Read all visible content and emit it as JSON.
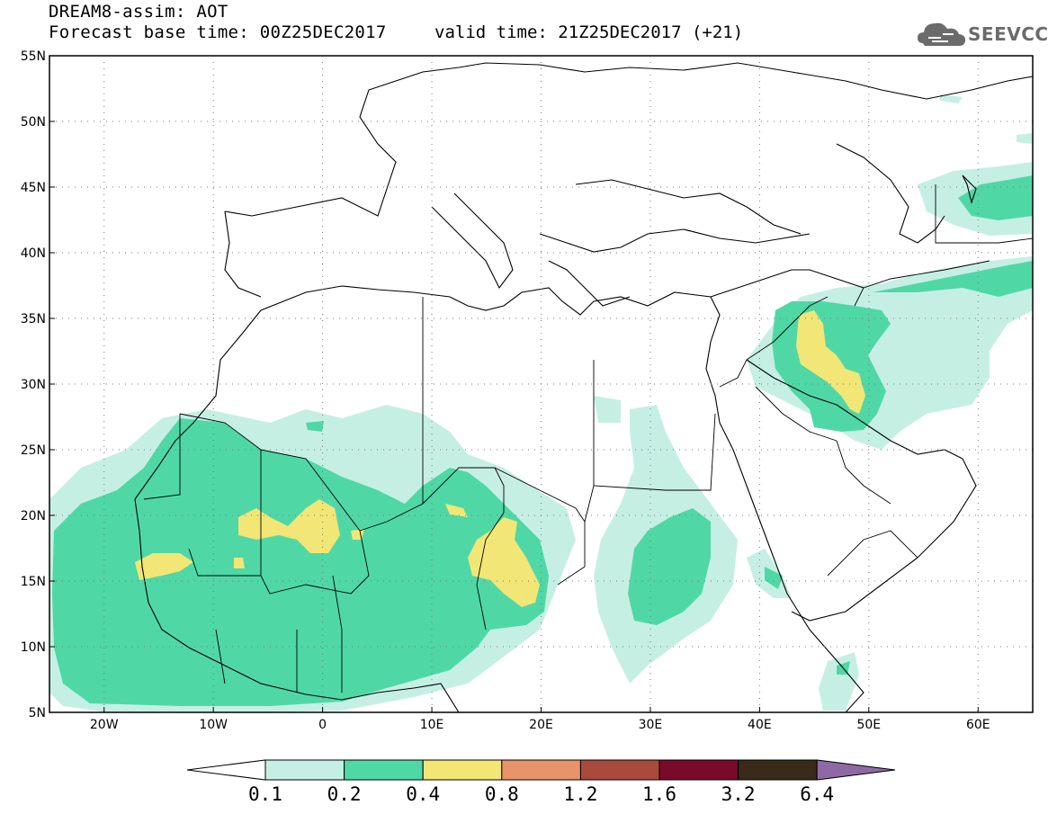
{
  "header": {
    "title_line1": "DREAM8-assim: AOT",
    "title_line2": "Forecast base time: 00Z25DEC2017",
    "valid_time": "valid time: 21Z25DEC2017 (+21)",
    "logo_text": "SEEVCCC"
  },
  "map": {
    "lon_range": [
      -25,
      65
    ],
    "lat_range": [
      5,
      55
    ],
    "lon_ticks": [
      {
        "value": -20,
        "label": "20W"
      },
      {
        "value": -10,
        "label": "10W"
      },
      {
        "value": 0,
        "label": "0"
      },
      {
        "value": 10,
        "label": "10E"
      },
      {
        "value": 20,
        "label": "20E"
      },
      {
        "value": 30,
        "label": "30E"
      },
      {
        "value": 40,
        "label": "40E"
      },
      {
        "value": 50,
        "label": "50E"
      },
      {
        "value": 60,
        "label": "60E"
      }
    ],
    "lat_ticks": [
      {
        "value": 55,
        "label": "55N"
      },
      {
        "value": 50,
        "label": "50N"
      },
      {
        "value": 45,
        "label": "45N"
      },
      {
        "value": 40,
        "label": "40N"
      },
      {
        "value": 35,
        "label": "35N"
      },
      {
        "value": 30,
        "label": "30N"
      },
      {
        "value": 25,
        "label": "25N"
      },
      {
        "value": 20,
        "label": "20N"
      },
      {
        "value": 15,
        "label": "15N"
      },
      {
        "value": 10,
        "label": "10N"
      },
      {
        "value": 5,
        "label": "5N"
      }
    ],
    "grid": "dotted"
  },
  "colorbar": {
    "levels": [
      "0.1",
      "0.2",
      "0.4",
      "0.8",
      "1.2",
      "1.6",
      "3.2",
      "6.4"
    ],
    "colors": [
      "#ffffff",
      "#c6efe4",
      "#4fd8a6",
      "#f2e676",
      "#e8946a",
      "#a94a3c",
      "#7a0a2a",
      "#3a2a1a",
      "#8d6aa6"
    ]
  }
}
